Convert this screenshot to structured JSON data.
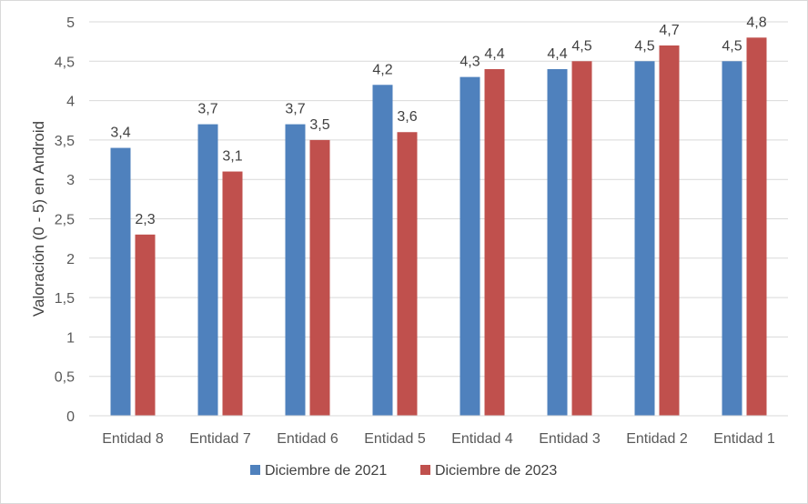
{
  "chart_data": {
    "type": "bar",
    "title": "",
    "xlabel": "",
    "ylabel": "Valoración (0 - 5) en Android",
    "ylim": [
      0,
      5
    ],
    "y_tick_step": 0.5,
    "decimal_separator": ",",
    "grid": true,
    "legend_position": "bottom",
    "categories": [
      "Entidad 8",
      "Entidad 7",
      "Entidad 6",
      "Entidad 5",
      "Entidad 4",
      "Entidad 3",
      "Entidad 2",
      "Entidad 1"
    ],
    "series": [
      {
        "name": "Diciembre de 2021",
        "color": "#4f81bd",
        "values": [
          3.4,
          3.7,
          3.7,
          4.2,
          4.3,
          4.4,
          4.5,
          4.5
        ]
      },
      {
        "name": "Diciembre de 2023",
        "color": "#c0504d",
        "values": [
          2.3,
          3.1,
          3.5,
          3.6,
          4.4,
          4.5,
          4.7,
          4.8
        ]
      }
    ]
  }
}
